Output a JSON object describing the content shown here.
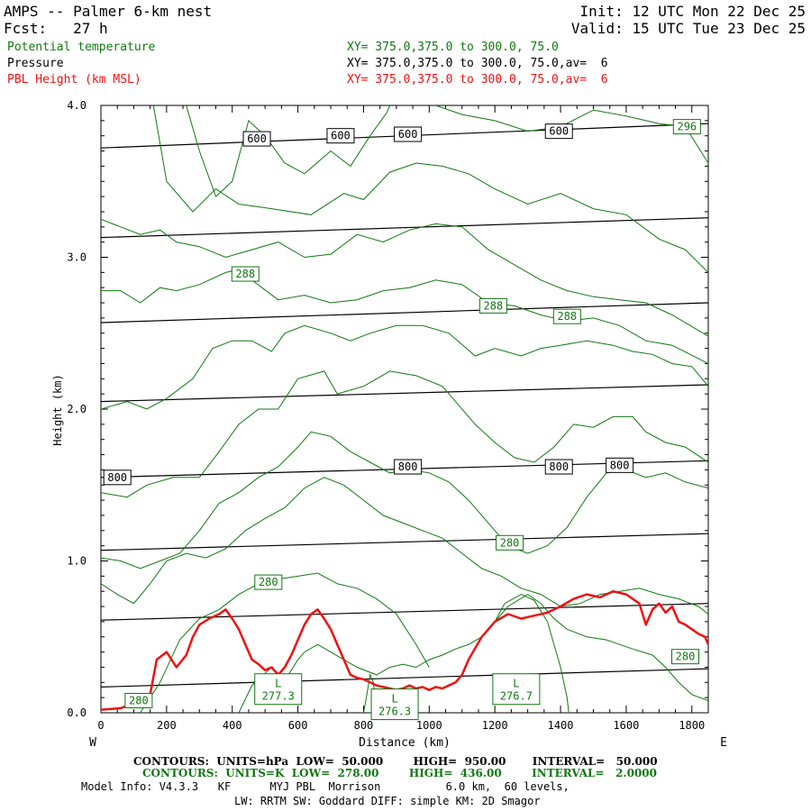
{
  "header": {
    "title": "AMPS -- Palmer 6-km nest",
    "init": "Init: 12 UTC Mon 22 Dec 25",
    "fcst": "Fcst:   27 h",
    "valid": "Valid: 15 UTC Tue 23 Dec 25",
    "field1": "Potential temperature",
    "field2": "Pressure",
    "field3": "PBL Height (km MSL)",
    "xy1": "XY= 375.0,375.0 to 300.0, 75.0",
    "xy2": "XY= 375.0,375.0 to 300.0, 75.0,av=  6",
    "xy3": "XY= 375.0,375.0 to 300.0, 75.0,av=  6",
    "color_green": "#117711",
    "color_red": "#ee1111"
  },
  "footer": {
    "line1": "CONTOURS:  UNITS=hPa  LOW=  50.000        HIGH=  950.00       INTERVAL=   50.000",
    "line2": "CONTOURS:  UNITS=K  LOW=  278.00        HIGH=  436.00        INTERVAL=   2.0000",
    "line3": "Model Info: V4.3.3   KF      MYJ PBL  Morrison          6.0 km,  60 levels,",
    "line4": "LW: RRTM SW: Goddard DIFF: simple KM: 2D Smagor"
  },
  "chart_data": {
    "type": "line",
    "title": "Cross section: Potential temperature, Pressure, PBL Height",
    "xlabel": "Distance (km)",
    "ylabel": "Height (km)",
    "xlim": [
      0,
      1850
    ],
    "ylim": [
      0,
      4.0
    ],
    "x_ticks": [
      0,
      200,
      400,
      600,
      800,
      1000,
      1200,
      1400,
      1600,
      1800
    ],
    "y_ticks": [
      0.0,
      1.0,
      2.0,
      3.0,
      4.0
    ],
    "y_tick_labels": [
      "0.0",
      "1.0",
      "2.0",
      "3.0",
      "4.0"
    ],
    "left_end_label": "W",
    "right_end_label": "E",
    "pressure_isobars": [
      {
        "hpa": 600,
        "x": [
          0,
          1850
        ],
        "y": [
          3.72,
          3.88
        ]
      },
      {
        "hpa": 650,
        "x": [
          0,
          1850
        ],
        "y": [
          3.13,
          3.26
        ]
      },
      {
        "hpa": 700,
        "x": [
          0,
          1850
        ],
        "y": [
          2.57,
          2.7
        ]
      },
      {
        "hpa": 750,
        "x": [
          0,
          1850
        ],
        "y": [
          2.05,
          2.16
        ]
      },
      {
        "hpa": 800,
        "x": [
          0,
          1850
        ],
        "y": [
          1.55,
          1.66
        ]
      },
      {
        "hpa": 850,
        "x": [
          0,
          1850
        ],
        "y": [
          1.07,
          1.18
        ]
      },
      {
        "hpa": 900,
        "x": [
          0,
          1850
        ],
        "y": [
          0.61,
          0.72
        ]
      },
      {
        "hpa": 950,
        "x": [
          0,
          1850
        ],
        "y": [
          0.17,
          0.29
        ]
      }
    ],
    "pressure_labels": [
      {
        "text": "600",
        "x": 475,
        "y": 3.78
      },
      {
        "text": "600",
        "x": 730,
        "y": 3.8
      },
      {
        "text": "600",
        "x": 935,
        "y": 3.81
      },
      {
        "text": "600",
        "x": 1395,
        "y": 3.83
      },
      {
        "text": "800",
        "x": 50,
        "y": 1.55
      },
      {
        "text": "800",
        "x": 935,
        "y": 1.62
      },
      {
        "text": "800",
        "x": 1395,
        "y": 1.62
      },
      {
        "text": "800",
        "x": 1580,
        "y": 1.63
      }
    ],
    "theta_contours": [
      {
        "x": [
          260,
          300,
          350,
          400,
          450,
          500,
          560,
          620,
          700,
          760,
          820,
          870,
          880
        ],
        "y": [
          4.0,
          3.7,
          3.4,
          3.5,
          3.9,
          3.8,
          3.62,
          3.55,
          3.7,
          3.6,
          3.8,
          3.95,
          4.0
        ]
      },
      {
        "x": [
          1020,
          1100,
          1200,
          1300,
          1400,
          1500,
          1600,
          1700,
          1780,
          1850
        ],
        "y": [
          4.0,
          3.94,
          3.9,
          3.83,
          3.86,
          3.97,
          3.93,
          3.88,
          3.86,
          3.62
        ]
      },
      {
        "x": [
          160,
          200,
          280,
          350,
          420,
          520,
          640,
          740,
          800,
          880,
          960,
          1040,
          1120,
          1200,
          1300,
          1400,
          1500,
          1600,
          1700,
          1780,
          1850
        ],
        "y": [
          4.0,
          3.5,
          3.3,
          3.45,
          3.35,
          3.32,
          3.28,
          3.42,
          3.38,
          3.56,
          3.62,
          3.6,
          3.55,
          3.45,
          3.35,
          3.42,
          3.32,
          3.28,
          3.12,
          3.05,
          2.9
        ]
      },
      {
        "x": [
          0,
          60,
          120,
          180,
          230,
          300,
          380,
          460,
          540,
          620,
          700,
          780,
          860,
          940,
          1020,
          1100,
          1180,
          1260,
          1340,
          1420,
          1500,
          1580,
          1660,
          1740,
          1850
        ],
        "y": [
          3.25,
          3.2,
          3.15,
          3.18,
          3.1,
          3.07,
          3.0,
          3.05,
          3.1,
          3.0,
          3.02,
          3.15,
          3.1,
          3.18,
          3.22,
          3.2,
          3.05,
          2.95,
          2.85,
          2.78,
          2.74,
          2.72,
          2.7,
          2.62,
          2.48
        ]
      },
      {
        "x": [
          0,
          60,
          120,
          180,
          230,
          300,
          380,
          420,
          460,
          540,
          620,
          700,
          780,
          860,
          940,
          1020,
          1100,
          1180,
          1260,
          1340,
          1420,
          1500,
          1580,
          1660,
          1740,
          1850
        ],
        "y": [
          2.78,
          2.78,
          2.7,
          2.8,
          2.78,
          2.82,
          2.9,
          2.92,
          2.85,
          2.72,
          2.75,
          2.7,
          2.72,
          2.78,
          2.8,
          2.85,
          2.82,
          2.7,
          2.68,
          2.62,
          2.58,
          2.6,
          2.55,
          2.45,
          2.42,
          2.3
        ]
      },
      {
        "x": [
          0,
          80,
          140,
          200,
          280,
          340,
          400,
          460,
          520,
          560,
          620,
          700,
          760,
          820,
          900,
          980,
          1060,
          1140,
          1200,
          1280,
          1340,
          1400,
          1480,
          1560,
          1620,
          1680,
          1740,
          1800,
          1850
        ],
        "y": [
          2.0,
          2.05,
          2.0,
          2.07,
          2.2,
          2.4,
          2.45,
          2.45,
          2.38,
          2.5,
          2.55,
          2.5,
          2.45,
          2.5,
          2.55,
          2.55,
          2.5,
          2.35,
          2.4,
          2.35,
          2.4,
          2.42,
          2.45,
          2.42,
          2.38,
          2.36,
          2.3,
          2.28,
          2.15
        ]
      },
      {
        "x": [
          0,
          80,
          140,
          220,
          300,
          360,
          420,
          480,
          540,
          600,
          680,
          720,
          800,
          880,
          960,
          1040,
          1080,
          1140,
          1200,
          1260,
          1320,
          1380,
          1440,
          1500,
          1560,
          1620,
          1660,
          1720,
          1780,
          1850
        ],
        "y": [
          1.45,
          1.42,
          1.5,
          1.55,
          1.55,
          1.72,
          1.9,
          2.0,
          2.0,
          2.2,
          2.25,
          2.1,
          2.15,
          2.25,
          2.22,
          2.15,
          2.05,
          1.9,
          1.78,
          1.68,
          1.65,
          1.75,
          1.9,
          1.88,
          1.95,
          1.95,
          1.85,
          1.78,
          1.75,
          1.65
        ]
      },
      {
        "x": [
          0,
          60,
          120,
          180,
          240,
          300,
          360,
          420,
          480,
          540,
          600,
          640,
          700,
          760,
          820,
          880,
          940,
          1000,
          1060,
          1120,
          1180,
          1240,
          1300,
          1360,
          1420,
          1480,
          1540,
          1600,
          1660,
          1720,
          1780,
          1850
        ],
        "y": [
          1.02,
          1.0,
          0.95,
          1.0,
          1.05,
          1.2,
          1.38,
          1.45,
          1.55,
          1.62,
          1.75,
          1.85,
          1.82,
          1.72,
          1.65,
          1.58,
          1.6,
          1.58,
          1.52,
          1.4,
          1.25,
          1.1,
          1.05,
          1.1,
          1.22,
          1.42,
          1.58,
          1.6,
          1.55,
          1.58,
          1.52,
          1.48
        ]
      },
      {
        "x": [
          0,
          50,
          100,
          150,
          200,
          260,
          320,
          380,
          440,
          500,
          560,
          620,
          680,
          740,
          800,
          860,
          920,
          980,
          1040,
          1100,
          1160,
          1220,
          1280,
          1340,
          1400,
          1460,
          1520,
          1580,
          1640,
          1700,
          1760,
          1820,
          1850
        ],
        "y": [
          0.85,
          0.78,
          0.72,
          0.85,
          1.0,
          1.05,
          1.02,
          1.08,
          1.2,
          1.28,
          1.35,
          1.48,
          1.55,
          1.5,
          1.4,
          1.3,
          1.25,
          1.2,
          1.15,
          1.05,
          0.95,
          0.9,
          0.82,
          0.78,
          0.7,
          0.72,
          0.78,
          0.8,
          0.82,
          0.78,
          0.75,
          0.7,
          0.65
        ]
      },
      {
        "x": [
          120,
          180,
          240,
          300,
          360,
          420,
          480,
          540,
          600,
          660,
          720,
          780,
          840,
          900,
          960,
          1000
        ],
        "y": [
          0.0,
          0.2,
          0.48,
          0.62,
          0.68,
          0.78,
          0.85,
          0.88,
          0.9,
          0.92,
          0.85,
          0.82,
          0.75,
          0.65,
          0.45,
          0.3
        ]
      },
      {
        "x": [
          420,
          460,
          520,
          560,
          580,
          600,
          620,
          660,
          700,
          780,
          840,
          880,
          920,
          960,
          1000,
          1040,
          1080,
          1120,
          1160,
          1200,
          1240,
          1300,
          1340,
          1380,
          1420,
          1480,
          1540,
          1580,
          1620,
          1680,
          1720,
          1760,
          1800,
          1850
        ],
        "y": [
          0.0,
          0.18,
          0.3,
          0.22,
          0.28,
          0.35,
          0.4,
          0.45,
          0.4,
          0.3,
          0.25,
          0.3,
          0.32,
          0.3,
          0.35,
          0.38,
          0.42,
          0.45,
          0.5,
          0.6,
          0.7,
          0.78,
          0.72,
          0.62,
          0.55,
          0.5,
          0.48,
          0.45,
          0.42,
          0.38,
          0.3,
          0.2,
          0.12,
          0.08
        ]
      },
      {
        "x": [
          1200,
          1230,
          1280,
          1320,
          1360,
          1400,
          1420,
          1425
        ],
        "y": [
          0.6,
          0.72,
          0.78,
          0.74,
          0.6,
          0.3,
          0.1,
          0.0
        ]
      },
      {
        "x": [
          800,
          810,
          820,
          830,
          840
        ],
        "y": [
          0.0,
          0.12,
          0.25,
          0.2,
          0.0
        ]
      }
    ],
    "theta_labels": [
      {
        "text": "296",
        "x": 1785,
        "y": 3.86
      },
      {
        "text": "288",
        "x": 440,
        "y": 2.89
      },
      {
        "text": "288",
        "x": 1195,
        "y": 2.68
      },
      {
        "text": "288",
        "x": 1420,
        "y": 2.61
      },
      {
        "text": "280",
        "x": 1245,
        "y": 1.12
      },
      {
        "text": "280",
        "x": 510,
        "y": 0.86
      },
      {
        "text": "280",
        "x": 1780,
        "y": 0.37
      },
      {
        "text": "280",
        "x": 115,
        "y": 0.08
      }
    ],
    "lows": [
      {
        "text": "L",
        "value": "277.3",
        "x": 540,
        "y": 0.15
      },
      {
        "text": "L",
        "value": "276.3",
        "x": 895,
        "y": 0.05
      },
      {
        "text": "L",
        "value": "276.7",
        "x": 1265,
        "y": 0.15
      }
    ],
    "pbl_height": {
      "x": [
        0,
        60,
        120,
        150,
        170,
        200,
        230,
        260,
        280,
        300,
        330,
        360,
        380,
        400,
        420,
        440,
        460,
        480,
        500,
        520,
        540,
        560,
        580,
        600,
        620,
        640,
        660,
        680,
        700,
        720,
        740,
        760,
        780,
        800,
        820,
        840,
        860,
        880,
        900,
        920,
        940,
        960,
        980,
        1000,
        1020,
        1040,
        1060,
        1080,
        1100,
        1120,
        1160,
        1200,
        1240,
        1280,
        1320,
        1360,
        1400,
        1440,
        1480,
        1520,
        1560,
        1600,
        1640,
        1660,
        1680,
        1700,
        1720,
        1740,
        1760,
        1780,
        1800,
        1820,
        1840,
        1850
      ],
      "y": [
        0.02,
        0.03,
        0.08,
        0.12,
        0.35,
        0.4,
        0.3,
        0.38,
        0.5,
        0.58,
        0.62,
        0.65,
        0.68,
        0.62,
        0.55,
        0.45,
        0.35,
        0.32,
        0.28,
        0.3,
        0.25,
        0.3,
        0.38,
        0.48,
        0.58,
        0.65,
        0.68,
        0.62,
        0.55,
        0.45,
        0.35,
        0.25,
        0.23,
        0.22,
        0.2,
        0.18,
        0.17,
        0.16,
        0.15,
        0.16,
        0.18,
        0.16,
        0.17,
        0.15,
        0.17,
        0.16,
        0.18,
        0.2,
        0.25,
        0.35,
        0.5,
        0.6,
        0.65,
        0.62,
        0.64,
        0.66,
        0.7,
        0.75,
        0.78,
        0.76,
        0.8,
        0.78,
        0.72,
        0.58,
        0.68,
        0.72,
        0.66,
        0.7,
        0.6,
        0.58,
        0.55,
        0.52,
        0.5,
        0.45
      ]
    }
  }
}
